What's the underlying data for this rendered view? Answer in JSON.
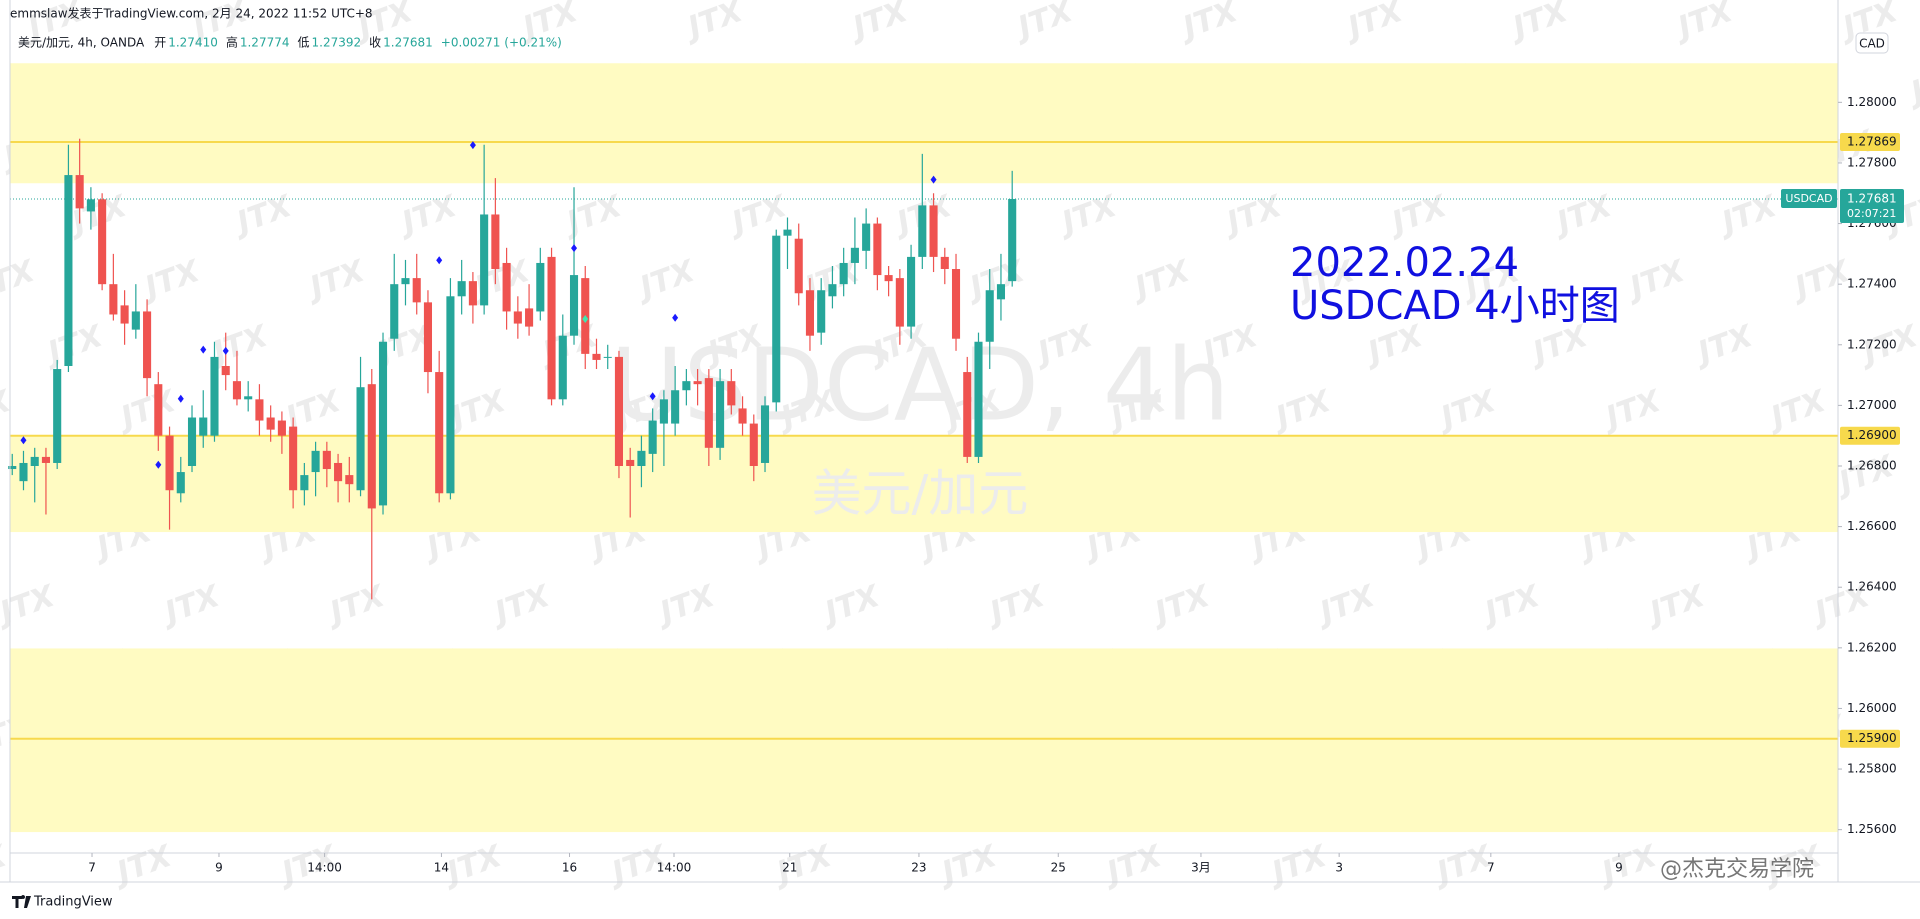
{
  "chart_data": {
    "type": "candlestick",
    "publisher": "emmslaw发表于TradingView.com, 2月 24, 2022 11:52 UTC+8",
    "legend": {
      "symbol": "美元/加元, 4h, OANDA",
      "items": [
        {
          "label": "开",
          "value": "1.27410"
        },
        {
          "label": "高",
          "value": "1.27774"
        },
        {
          "label": "低",
          "value": "1.27392"
        },
        {
          "label": "收",
          "value": "1.27681"
        }
      ],
      "change": "+0.00271 (+0.21%)"
    },
    "currency": "CAD",
    "watermark": {
      "tile": "JTX",
      "symbol": "USDCAD, 4h",
      "name": "美元/加元",
      "author": "@杰克交易学院"
    },
    "annotation": [
      "2022.02.24",
      "USDCAD 4小时图"
    ],
    "footer": "TradingView",
    "up_color": "#26a69a",
    "down_color": "#ef5350",
    "x": [
      0,
      1,
      2,
      3,
      4,
      5,
      6,
      7,
      8,
      9,
      10,
      11,
      12,
      13,
      14,
      15,
      16,
      17,
      18,
      19,
      20,
      21,
      22,
      23,
      24,
      25,
      26,
      27,
      28,
      29,
      30,
      31,
      32,
      33,
      34,
      35,
      36,
      37,
      38,
      39,
      40,
      41,
      42,
      43,
      44,
      45,
      46,
      47,
      48,
      49,
      50,
      51,
      52,
      53,
      54,
      55,
      56,
      57,
      58,
      59,
      60,
      61,
      62,
      63,
      64,
      65,
      66,
      67,
      68,
      69,
      70,
      71,
      72,
      73,
      74,
      75,
      76,
      77,
      78,
      79,
      80,
      81,
      82,
      83,
      84,
      85,
      86,
      87,
      88,
      89
    ],
    "open": [
      1.2679,
      1.2675,
      1.268,
      1.2683,
      1.2681,
      1.2713,
      1.2776,
      1.2764,
      1.2768,
      1.274,
      1.2733,
      1.2725,
      1.2731,
      1.2707,
      1.269,
      1.2671,
      1.268,
      1.269,
      1.269,
      1.2713,
      1.2708,
      1.2702,
      1.2702,
      1.2696,
      1.2695,
      1.2693,
      1.2672,
      1.2678,
      1.2685,
      1.2681,
      1.2677,
      1.2672,
      1.2707,
      1.2667,
      1.2722,
      1.274,
      1.2742,
      1.2734,
      1.2711,
      1.2671,
      1.2736,
      1.2741,
      1.2733,
      1.2763,
      1.2747,
      1.2731,
      1.2732,
      1.2731,
      1.2749,
      1.2702,
      1.2723,
      1.2742,
      1.2717,
      1.2716,
      1.2716,
      1.2682,
      1.268,
      1.2684,
      1.2694,
      1.2694,
      1.2705,
      1.2708,
      1.2709,
      1.2686,
      1.2708,
      1.2699,
      1.2694,
      1.2681,
      1.2701,
      1.2756,
      1.2755,
      1.2738,
      1.2724,
      1.2736,
      1.274,
      1.2747,
      1.2751,
      1.276,
      1.2743,
      1.2742,
      1.2726,
      1.2749,
      1.2766,
      1.2749,
      1.2745,
      1.2711,
      1.2683,
      1.2721,
      1.2735,
      1.2741
    ],
    "high": [
      1.2684,
      1.2685,
      1.2686,
      1.2686,
      1.2715,
      1.2786,
      1.2788,
      1.2772,
      1.277,
      1.275,
      1.2738,
      1.274,
      1.2735,
      1.2711,
      1.2693,
      1.2683,
      1.27,
      1.2705,
      1.2721,
      1.2724,
      1.2718,
      1.2708,
      1.2707,
      1.27,
      1.2698,
      1.2696,
      1.2681,
      1.2688,
      1.2688,
      1.2684,
      1.2683,
      1.2716,
      1.2712,
      1.2724,
      1.275,
      1.2748,
      1.275,
      1.2738,
      1.2718,
      1.2742,
      1.2748,
      1.2744,
      1.2786,
      1.2775,
      1.2752,
      1.2736,
      1.274,
      1.2752,
      1.2752,
      1.273,
      1.2772,
      1.2746,
      1.2722,
      1.272,
      1.2718,
      1.2686,
      1.269,
      1.2699,
      1.2705,
      1.2713,
      1.2712,
      1.2712,
      1.2712,
      1.2712,
      1.2712,
      1.2703,
      1.2697,
      1.2703,
      1.2758,
      1.2762,
      1.276,
      1.2742,
      1.2742,
      1.2746,
      1.2752,
      1.2762,
      1.2765,
      1.2762,
      1.2746,
      1.2745,
      1.2753,
      1.2783,
      1.277,
      1.2752,
      1.275,
      1.2716,
      1.2724,
      1.2745,
      1.275,
      1.27774
    ],
    "low": [
      1.2677,
      1.2672,
      1.2668,
      1.2664,
      1.2679,
      1.2711,
      1.276,
      1.2758,
      1.2738,
      1.2728,
      1.272,
      1.2722,
      1.2703,
      1.2685,
      1.2659,
      1.2668,
      1.2678,
      1.2686,
      1.2688,
      1.2705,
      1.27,
      1.2698,
      1.269,
      1.2688,
      1.2684,
      1.2666,
      1.2667,
      1.267,
      1.2673,
      1.2668,
      1.2668,
      1.267,
      1.2636,
      1.2664,
      1.2718,
      1.2733,
      1.273,
      1.2704,
      1.2668,
      1.2669,
      1.273,
      1.2727,
      1.273,
      1.274,
      1.2725,
      1.2722,
      1.2723,
      1.2728,
      1.27,
      1.27,
      1.272,
      1.2712,
      1.2712,
      1.2712,
      1.2676,
      1.2663,
      1.2673,
      1.2678,
      1.268,
      1.269,
      1.27,
      1.27,
      1.268,
      1.2682,
      1.2697,
      1.269,
      1.2675,
      1.2678,
      1.2698,
      1.2745,
      1.2733,
      1.2718,
      1.272,
      1.2732,
      1.2736,
      1.274,
      1.2745,
      1.2738,
      1.2736,
      1.272,
      1.2722,
      1.2745,
      1.2744,
      1.274,
      1.2718,
      1.2681,
      1.2681,
      1.2712,
      1.2728,
      1.27392
    ],
    "close": [
      1.268,
      1.2681,
      1.2683,
      1.2681,
      1.2712,
      1.2776,
      1.2765,
      1.2768,
      1.274,
      1.273,
      1.2727,
      1.2731,
      1.2709,
      1.269,
      1.2672,
      1.2678,
      1.2696,
      1.2696,
      1.2716,
      1.271,
      1.2702,
      1.2703,
      1.2695,
      1.2692,
      1.269,
      1.2672,
      1.2677,
      1.2685,
      1.2679,
      1.2675,
      1.2674,
      1.2706,
      1.2666,
      1.2721,
      1.274,
      1.2742,
      1.2734,
      1.2711,
      1.2671,
      1.2736,
      1.2741,
      1.2733,
      1.2763,
      1.2745,
      1.2731,
      1.2727,
      1.2726,
      1.2747,
      1.2702,
      1.2723,
      1.2743,
      1.2717,
      1.2715,
      1.2716,
      1.268,
      1.268,
      1.2685,
      1.2695,
      1.2702,
      1.2705,
      1.2708,
      1.2707,
      1.2686,
      1.2708,
      1.27,
      1.2694,
      1.268,
      1.27,
      1.2756,
      1.2758,
      1.2737,
      1.2723,
      1.2738,
      1.274,
      1.2747,
      1.2752,
      1.276,
      1.2743,
      1.2741,
      1.2726,
      1.2749,
      1.2766,
      1.2749,
      1.2745,
      1.2722,
      1.2683,
      1.2721,
      1.2738,
      1.274,
      1.27681
    ],
    "markers": [
      {
        "x": 1,
        "y": 1.26885,
        "color": "#1a1aff"
      },
      {
        "x": 13,
        "y": 1.26804,
        "color": "#1a1aff"
      },
      {
        "x": 15,
        "y": 1.27022,
        "color": "#1a1aff"
      },
      {
        "x": 17,
        "y": 1.27184,
        "color": "#1a1aff"
      },
      {
        "x": 19,
        "y": 1.2718,
        "color": "#1a1aff"
      },
      {
        "x": 38,
        "y": 1.27479,
        "color": "#1a1aff"
      },
      {
        "x": 41,
        "y": 1.27859,
        "color": "#1a1aff"
      },
      {
        "x": 50,
        "y": 1.27519,
        "color": "#1a1aff"
      },
      {
        "x": 51,
        "y": 1.27285,
        "color": "#3ee8b0"
      },
      {
        "x": 57,
        "y": 1.2703,
        "color": "#1a1aff"
      },
      {
        "x": 59,
        "y": 1.27289,
        "color": "#1a1aff"
      },
      {
        "x": 82,
        "y": 1.27745,
        "color": "#1a1aff"
      }
    ],
    "zones": [
      [
        1.27733,
        1.28129
      ],
      [
        1.26582,
        1.269
      ],
      [
        1.25592,
        1.26198
      ]
    ],
    "zone_color": "#fffbc2",
    "levels": [
      {
        "value": 1.27869,
        "label": "1.27869"
      },
      {
        "value": 1.269,
        "label": "1.26900"
      },
      {
        "value": 1.259,
        "label": "1.25900"
      }
    ],
    "level_color": "#f7d94c",
    "last": {
      "name": "USDCAD",
      "value": 1.27681,
      "countdown": "02:07:21"
    },
    "xlim": [
      -0.2,
      162.5
    ],
    "xticks": [
      {
        "value": 7.1,
        "label": "7"
      },
      {
        "value": 18.4,
        "label": "9"
      },
      {
        "value": 27.8,
        "label": "14:00"
      },
      {
        "value": 38.2,
        "label": "14"
      },
      {
        "value": 49.6,
        "label": "16"
      },
      {
        "value": 58.9,
        "label": "14:00"
      },
      {
        "value": 69.2,
        "label": "21"
      },
      {
        "value": 80.7,
        "label": "23"
      },
      {
        "value": 93.1,
        "label": "25"
      },
      {
        "value": 105.8,
        "label": "3月"
      },
      {
        "value": 118.1,
        "label": "3"
      },
      {
        "value": 131.6,
        "label": "7"
      },
      {
        "value": 143,
        "label": "9"
      }
    ],
    "ylim": [
      1.25523,
      1.28242
    ],
    "yticks": [
      {
        "value": 1.256,
        "label": "1.25600"
      },
      {
        "value": 1.258,
        "label": "1.25800"
      },
      {
        "value": 1.26,
        "label": "1.26000"
      },
      {
        "value": 1.262,
        "label": "1.26200"
      },
      {
        "value": 1.264,
        "label": "1.26400"
      },
      {
        "value": 1.266,
        "label": "1.26600"
      },
      {
        "value": 1.268,
        "label": "1.26800"
      },
      {
        "value": 1.27,
        "label": "1.27000"
      },
      {
        "value": 1.272,
        "label": "1.27200"
      },
      {
        "value": 1.274,
        "label": "1.27400"
      },
      {
        "value": 1.276,
        "label": "1.27600"
      },
      {
        "value": 1.278,
        "label": "1.27800"
      },
      {
        "value": 1.28,
        "label": "1.28000"
      }
    ]
  }
}
